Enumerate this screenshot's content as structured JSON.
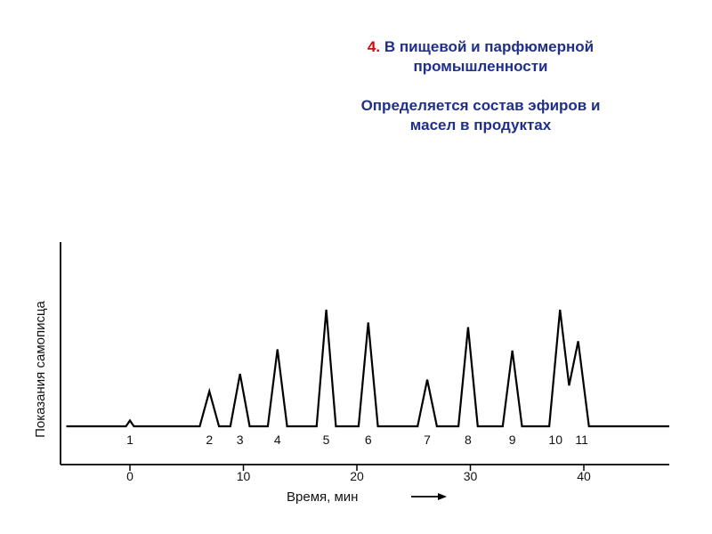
{
  "heading": {
    "number": "4.",
    "title_part1": "В пищевой и парфюмерной",
    "title_part2": "промышленности",
    "subtitle_part1": "Определяется состав эфиров и",
    "subtitle_part2": "масел в продуктах"
  },
  "chart_data": {
    "type": "line",
    "title": "",
    "xlabel": "Время, мин",
    "ylabel": "Показания самописца",
    "xlim": [
      -6,
      46
    ],
    "ylim": [
      0,
      1
    ],
    "x_ticks": [
      0,
      10,
      20,
      30,
      40
    ],
    "grid": false,
    "peaks": [
      {
        "label": "1",
        "time": 0,
        "height": 0.05
      },
      {
        "label": "2",
        "time": 7,
        "height": 0.3
      },
      {
        "label": "3",
        "time": 9.7,
        "height": 0.45
      },
      {
        "label": "4",
        "time": 13,
        "height": 0.66
      },
      {
        "label": "5",
        "time": 17.3,
        "height": 1.0
      },
      {
        "label": "6",
        "time": 21,
        "height": 0.89
      },
      {
        "label": "7",
        "time": 26.2,
        "height": 0.4
      },
      {
        "label": "8",
        "time": 29.8,
        "height": 0.85
      },
      {
        "label": "9",
        "time": 33.7,
        "height": 0.65
      },
      {
        "label": "10",
        "time": 37.9,
        "height": 1.0
      },
      {
        "label": "11",
        "time": 39.5,
        "height": 0.73
      }
    ]
  }
}
